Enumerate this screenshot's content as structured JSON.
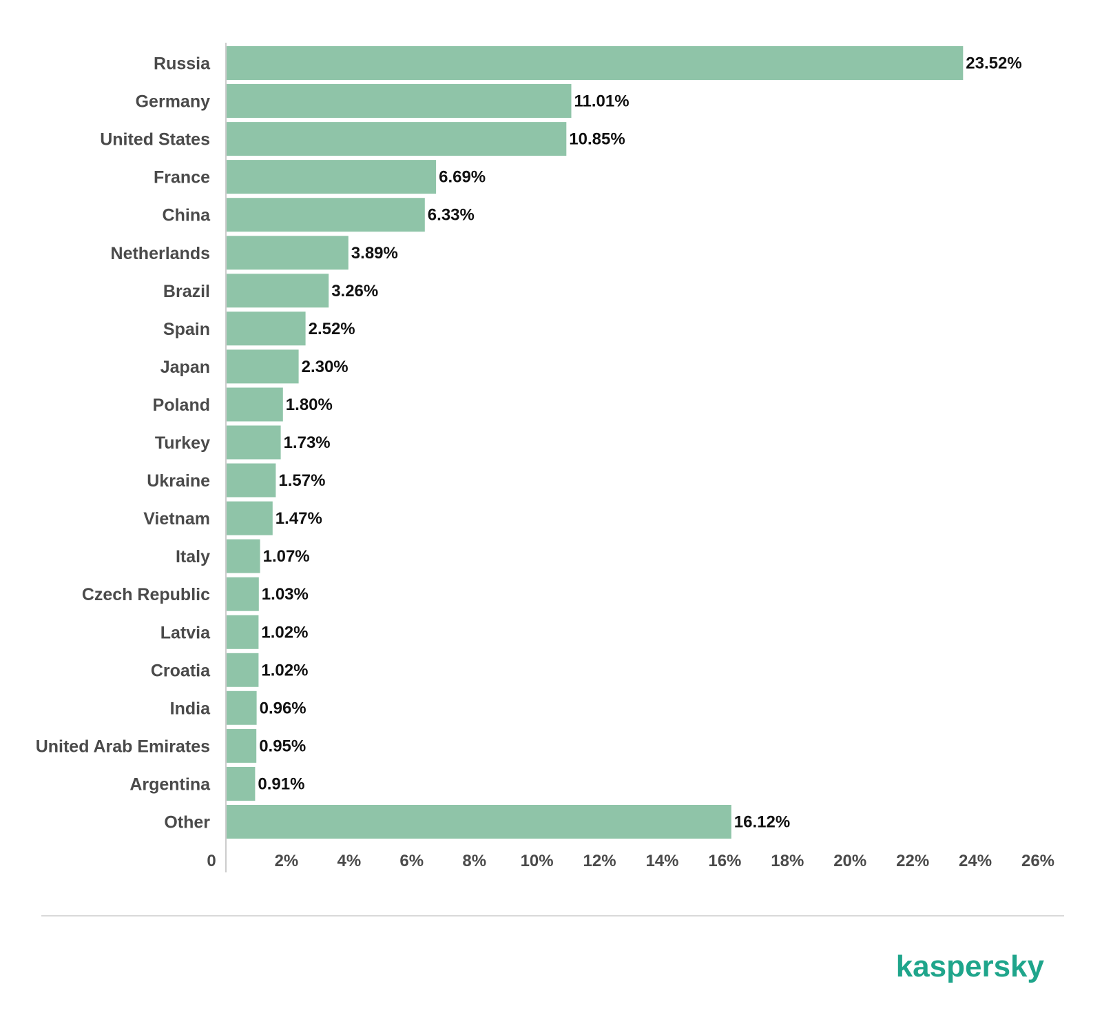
{
  "brand": {
    "name": "kaspersky",
    "color": "#1fa58b"
  },
  "colors": {
    "bar": "#8fc4a8",
    "axis": "#cccccc"
  },
  "chart_data": {
    "type": "bar",
    "orientation": "horizontal",
    "categories": [
      "Russia",
      "Germany",
      "United States",
      "France",
      "China",
      "Netherlands",
      "Brazil",
      "Spain",
      "Japan",
      "Poland",
      "Turkey",
      "Ukraine",
      "Vietnam",
      "Italy",
      "Czech Republic",
      "Latvia",
      "Croatia",
      "India",
      "United Arab Emirates",
      "Argentina",
      "Other"
    ],
    "values": [
      23.52,
      11.01,
      10.85,
      6.69,
      6.33,
      3.89,
      3.26,
      2.52,
      2.3,
      1.8,
      1.73,
      1.57,
      1.47,
      1.07,
      1.03,
      1.02,
      1.02,
      0.96,
      0.95,
      0.91,
      16.12
    ],
    "value_labels": [
      "23.52%",
      "11.01%",
      "10.85%",
      "6.69%",
      "6.33%",
      "3.89%",
      "3.26%",
      "2.52%",
      "2.30%",
      "1.80%",
      "1.73%",
      "1.57%",
      "1.47%",
      "1.07%",
      "1.03%",
      "1.02%",
      "1.02%",
      "0.96%",
      "0.95%",
      "0.91%",
      "16.12%"
    ],
    "xticks": [
      0,
      2,
      4,
      6,
      8,
      10,
      12,
      14,
      16,
      18,
      20,
      22,
      24,
      26
    ],
    "xtick_labels": [
      "0",
      "2%",
      "4%",
      "6%",
      "8%",
      "10%",
      "12%",
      "14%",
      "16%",
      "18%",
      "20%",
      "22%",
      "24%",
      "26%"
    ],
    "xlim": [
      0,
      26
    ],
    "grid": false,
    "legend": "none"
  }
}
